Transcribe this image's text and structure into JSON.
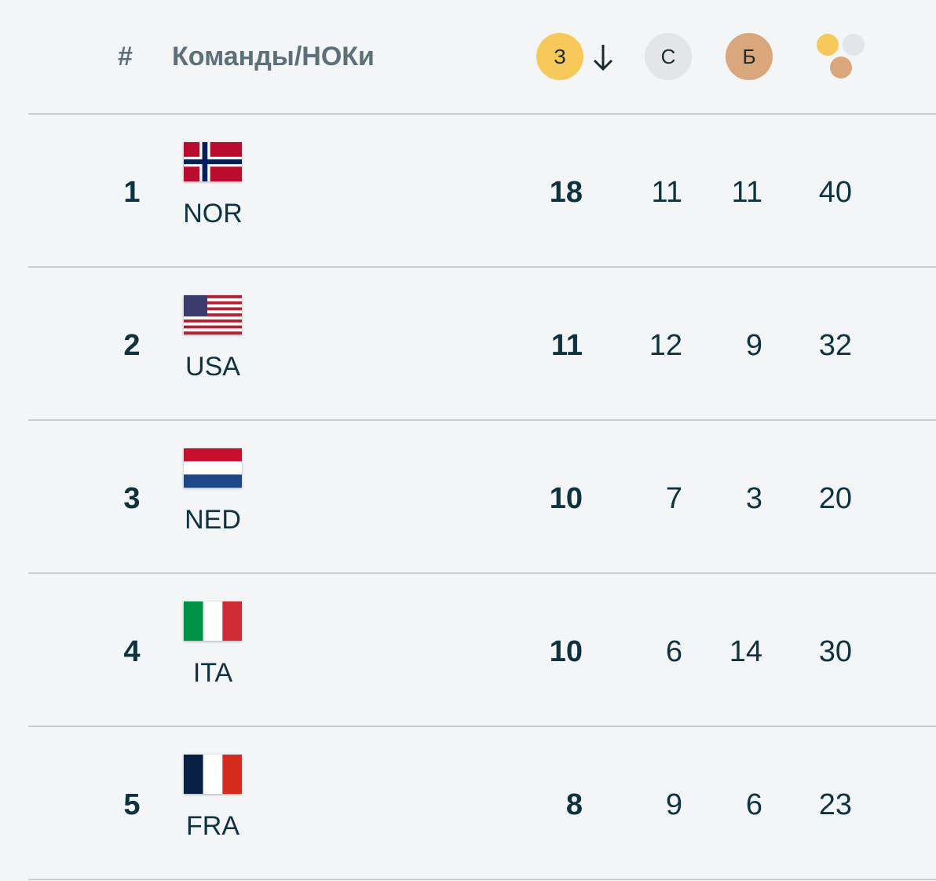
{
  "header": {
    "rank": "#",
    "team": "Команды/НОКи",
    "gold": "З",
    "silver": "С",
    "bronze": "Б"
  },
  "rows": [
    {
      "rank": 1,
      "code": "NOR",
      "gold": 18,
      "silver": 11,
      "bronze": 11,
      "total": 40
    },
    {
      "rank": 2,
      "code": "USA",
      "gold": 11,
      "silver": 12,
      "bronze": 9,
      "total": 32
    },
    {
      "rank": 3,
      "code": "NED",
      "gold": 10,
      "silver": 7,
      "bronze": 3,
      "total": 20
    },
    {
      "rank": 4,
      "code": "ITA",
      "gold": 10,
      "silver": 6,
      "bronze": 14,
      "total": 30
    },
    {
      "rank": 5,
      "code": "FRA",
      "gold": 8,
      "silver": 9,
      "bronze": 6,
      "total": 23
    }
  ]
}
